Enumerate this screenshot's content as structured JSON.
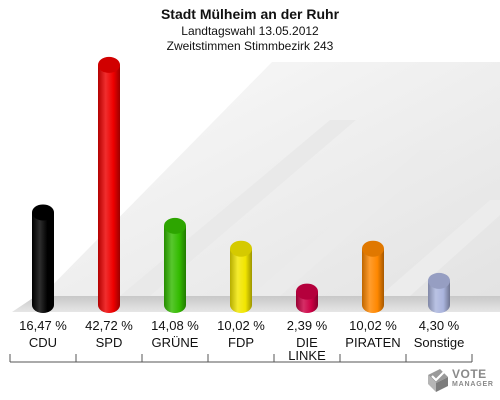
{
  "chart_data": {
    "type": "bar",
    "title": "Stadt Mülheim an der Ruhr",
    "subtitle_1": "Landtagswahl 13.05.2012",
    "subtitle_2": "Zweitstimmen Stimmbezirk 243",
    "categories": [
      "CDU",
      "SPD",
      "GRÜNE",
      "FDP",
      "DIE LINKE",
      "PIRATEN",
      "Sonstige"
    ],
    "values": [
      16.47,
      42.72,
      14.08,
      10.02,
      2.39,
      10.02,
      4.3
    ],
    "value_labels": [
      "16,47 %",
      "42,72 %",
      "14,08 %",
      "10,02 %",
      "2,39 %",
      "10,02 %",
      "4,30 %"
    ],
    "colors": [
      "#000000",
      "#ee0000",
      "#33bb00",
      "#f2e600",
      "#cc0044",
      "#ff8800",
      "#aab4dd"
    ],
    "ylim": [
      0,
      45
    ],
    "grid": false,
    "legend": "none"
  },
  "logo": {
    "line1": "VOTE",
    "line2": "MANAGER"
  }
}
